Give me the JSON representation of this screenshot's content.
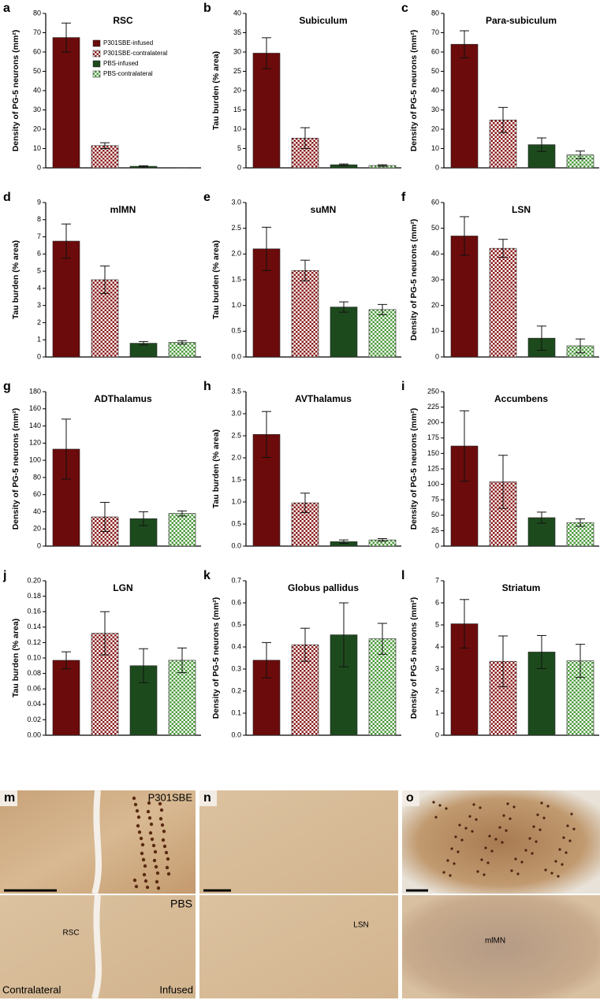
{
  "chart_data": [
    {
      "type": "bar",
      "panel": "a",
      "title": "RSC",
      "y_label": "Density of PG-5 neurons (mm²)",
      "ylim": [
        0,
        80
      ],
      "yticks": [
        0,
        10,
        20,
        30,
        40,
        50,
        60,
        70,
        80
      ],
      "legend": "top-right",
      "series": [
        {
          "name": "P301SBE-infused",
          "color": "#6b0b0b",
          "pattern": "solid",
          "values": [
            67.5
          ],
          "errors": [
            7.5
          ]
        },
        {
          "name": "P301SBE-contralateral",
          "color": "#8a1a1a",
          "pattern": "checker",
          "values": [
            11.5
          ],
          "errors": [
            1.5
          ]
        },
        {
          "name": "PBS-infused",
          "color": "#1d4a1d",
          "pattern": "solid",
          "values": [
            0.8
          ],
          "errors": [
            0.3
          ]
        },
        {
          "name": "PBS-contralateral",
          "color": "#4a9a3a",
          "pattern": "checker",
          "values": [
            0
          ],
          "errors": [
            0
          ]
        }
      ]
    },
    {
      "type": "bar",
      "panel": "b",
      "title": "Subiculum",
      "y_label": "Tau burden (% area)",
      "ylim": [
        0,
        40
      ],
      "yticks": [
        0,
        5,
        10,
        15,
        20,
        25,
        30,
        35,
        40
      ],
      "series": [
        {
          "color": "#6b0b0b",
          "pattern": "solid",
          "values": [
            29.7
          ],
          "errors": [
            4
          ]
        },
        {
          "color": "#8a1a1a",
          "pattern": "checker",
          "values": [
            7.7
          ],
          "errors": [
            2.7
          ]
        },
        {
          "color": "#1d4a1d",
          "pattern": "solid",
          "values": [
            0.8
          ],
          "errors": [
            0.2
          ]
        },
        {
          "color": "#4a9a3a",
          "pattern": "checker",
          "values": [
            0.6
          ],
          "errors": [
            0.2
          ]
        }
      ]
    },
    {
      "type": "bar",
      "panel": "c",
      "title": "Para-subiculum",
      "y_label": "Density of PG-5 neurons (mm²)",
      "ylim": [
        0,
        80
      ],
      "yticks": [
        0,
        10,
        20,
        30,
        40,
        50,
        60,
        70,
        80
      ],
      "series": [
        {
          "color": "#6b0b0b",
          "pattern": "solid",
          "values": [
            64
          ],
          "errors": [
            7
          ]
        },
        {
          "color": "#8a1a1a",
          "pattern": "checker",
          "values": [
            24.8
          ],
          "errors": [
            6.5
          ]
        },
        {
          "color": "#1d4a1d",
          "pattern": "solid",
          "values": [
            12
          ],
          "errors": [
            3.5
          ]
        },
        {
          "color": "#4a9a3a",
          "pattern": "checker",
          "values": [
            6.7
          ],
          "errors": [
            2
          ]
        }
      ]
    },
    {
      "type": "bar",
      "panel": "d",
      "title": "mlMN",
      "y_label": "Tau burden (% area)",
      "ylim": [
        0,
        9
      ],
      "yticks": [
        0,
        1,
        2,
        3,
        4,
        5,
        6,
        7,
        8,
        9
      ],
      "series": [
        {
          "color": "#6b0b0b",
          "pattern": "solid",
          "values": [
            6.75
          ],
          "errors": [
            1.0
          ]
        },
        {
          "color": "#8a1a1a",
          "pattern": "checker",
          "values": [
            4.5
          ],
          "errors": [
            0.8
          ]
        },
        {
          "color": "#1d4a1d",
          "pattern": "solid",
          "values": [
            0.8
          ],
          "errors": [
            0.1
          ]
        },
        {
          "color": "#4a9a3a",
          "pattern": "checker",
          "values": [
            0.85
          ],
          "errors": [
            0.1
          ]
        }
      ]
    },
    {
      "type": "bar",
      "panel": "e",
      "title": "suMN",
      "y_label": "Tau burden (% area)",
      "ylim": [
        0,
        3
      ],
      "yticks": [
        {
          "value": 0,
          "label": "0.0"
        },
        0.5,
        {
          "value": 1,
          "label": "1.0"
        },
        1.5,
        {
          "value": 2,
          "label": "2.0"
        },
        2.5,
        {
          "value": 3,
          "label": "3.0"
        }
      ],
      "series": [
        {
          "color": "#6b0b0b",
          "pattern": "solid",
          "values": [
            2.1
          ],
          "errors": [
            0.42
          ]
        },
        {
          "color": "#8a1a1a",
          "pattern": "checker",
          "values": [
            1.68
          ],
          "errors": [
            0.2
          ]
        },
        {
          "color": "#1d4a1d",
          "pattern": "solid",
          "values": [
            0.97
          ],
          "errors": [
            0.1
          ]
        },
        {
          "color": "#4a9a3a",
          "pattern": "checker",
          "values": [
            0.92
          ],
          "errors": [
            0.1
          ]
        }
      ]
    },
    {
      "type": "bar",
      "panel": "f",
      "title": "LSN",
      "y_label": "Density of PG-5 neurons (mm²)",
      "ylim": [
        0,
        60
      ],
      "yticks": [
        0,
        10,
        20,
        30,
        40,
        50,
        60
      ],
      "series": [
        {
          "color": "#6b0b0b",
          "pattern": "solid",
          "values": [
            47
          ],
          "errors": [
            7.5
          ]
        },
        {
          "color": "#8a1a1a",
          "pattern": "checker",
          "values": [
            42.2
          ],
          "errors": [
            3.5
          ]
        },
        {
          "color": "#1d4a1d",
          "pattern": "solid",
          "values": [
            7.3
          ],
          "errors": [
            4.7
          ]
        },
        {
          "color": "#4a9a3a",
          "pattern": "checker",
          "values": [
            4.3
          ],
          "errors": [
            2.7
          ]
        }
      ]
    },
    {
      "type": "bar",
      "panel": "g",
      "title": "ADThalamus",
      "y_label": "Density of PG-5 neurons (mm²)",
      "ylim": [
        0,
        180
      ],
      "yticks": [
        0,
        20,
        40,
        60,
        80,
        100,
        120,
        140,
        160,
        180
      ],
      "series": [
        {
          "color": "#6b0b0b",
          "pattern": "solid",
          "values": [
            113
          ],
          "errors": [
            35
          ]
        },
        {
          "color": "#8a1a1a",
          "pattern": "checker",
          "values": [
            34
          ],
          "errors": [
            17
          ]
        },
        {
          "color": "#1d4a1d",
          "pattern": "solid",
          "values": [
            32
          ],
          "errors": [
            8
          ]
        },
        {
          "color": "#4a9a3a",
          "pattern": "checker",
          "values": [
            38
          ],
          "errors": [
            3
          ]
        }
      ]
    },
    {
      "type": "bar",
      "panel": "h",
      "title": "AVThalamus",
      "y_label": "Tau burden (% area)",
      "ylim": [
        0,
        3.5
      ],
      "yticks": [
        {
          "value": 0,
          "label": "0.0"
        },
        0.5,
        {
          "value": 1,
          "label": "1.0"
        },
        1.5,
        {
          "value": 2,
          "label": "2.0"
        },
        2.5,
        {
          "value": 3,
          "label": "3.0"
        },
        3.5
      ],
      "series": [
        {
          "color": "#6b0b0b",
          "pattern": "solid",
          "values": [
            2.53
          ],
          "errors": [
            0.52
          ]
        },
        {
          "color": "#8a1a1a",
          "pattern": "checker",
          "values": [
            0.98
          ],
          "errors": [
            0.22
          ]
        },
        {
          "color": "#1d4a1d",
          "pattern": "solid",
          "values": [
            0.1
          ],
          "errors": [
            0.04
          ]
        },
        {
          "color": "#4a9a3a",
          "pattern": "checker",
          "values": [
            0.14
          ],
          "errors": [
            0.03
          ]
        }
      ]
    },
    {
      "type": "bar",
      "panel": "i",
      "title": "Accumbens",
      "y_label": "Density of PG-5 neurons (mm²)",
      "ylim": [
        0,
        250
      ],
      "yticks": [
        0,
        25,
        50,
        75,
        100,
        125,
        150,
        175,
        200,
        225,
        250
      ],
      "series": [
        {
          "color": "#6b0b0b",
          "pattern": "solid",
          "values": [
            162
          ],
          "errors": [
            57
          ]
        },
        {
          "color": "#8a1a1a",
          "pattern": "checker",
          "values": [
            104
          ],
          "errors": [
            43
          ]
        },
        {
          "color": "#1d4a1d",
          "pattern": "solid",
          "values": [
            46
          ],
          "errors": [
            9
          ]
        },
        {
          "color": "#4a9a3a",
          "pattern": "checker",
          "values": [
            38
          ],
          "errors": [
            6
          ]
        }
      ]
    },
    {
      "type": "bar",
      "panel": "j",
      "title": "LGN",
      "y_label": "Tau burden (% area)",
      "ylim": [
        0,
        0.2
      ],
      "yticks": [
        {
          "value": 0,
          "label": "0.00"
        },
        0.02,
        0.04,
        0.06,
        0.08,
        {
          "value": 0.1,
          "label": "0.10"
        },
        0.12,
        0.14,
        0.16,
        0.18,
        {
          "value": 0.2,
          "label": "0.20"
        }
      ],
      "series": [
        {
          "color": "#6b0b0b",
          "pattern": "solid",
          "values": [
            0.097
          ],
          "errors": [
            0.011
          ]
        },
        {
          "color": "#8a1a1a",
          "pattern": "checker",
          "values": [
            0.132
          ],
          "errors": [
            0.028
          ]
        },
        {
          "color": "#1d4a1d",
          "pattern": "solid",
          "values": [
            0.09
          ],
          "errors": [
            0.022
          ]
        },
        {
          "color": "#4a9a3a",
          "pattern": "checker",
          "values": [
            0.097
          ],
          "errors": [
            0.016
          ]
        }
      ]
    },
    {
      "type": "bar",
      "panel": "k",
      "title": "Globus pallidus",
      "y_label": "Density of PG-5 neurons (mm²)",
      "ylim": [
        0,
        0.7
      ],
      "yticks": [
        {
          "value": 0,
          "label": "0.0"
        },
        0.1,
        0.2,
        0.3,
        0.4,
        0.5,
        0.6,
        0.7
      ],
      "series": [
        {
          "color": "#6b0b0b",
          "pattern": "solid",
          "values": [
            0.34
          ],
          "errors": [
            0.08
          ]
        },
        {
          "color": "#8a1a1a",
          "pattern": "checker",
          "values": [
            0.41
          ],
          "errors": [
            0.075
          ]
        },
        {
          "color": "#1d4a1d",
          "pattern": "solid",
          "values": [
            0.455
          ],
          "errors": [
            0.145
          ]
        },
        {
          "color": "#4a9a3a",
          "pattern": "checker",
          "values": [
            0.437
          ],
          "errors": [
            0.07
          ]
        }
      ]
    },
    {
      "type": "bar",
      "panel": "l",
      "title": "Striatum",
      "y_label": "Density of PG-5 neurons (mm²)",
      "ylim": [
        0,
        7
      ],
      "yticks": [
        0,
        1,
        2,
        3,
        4,
        5,
        6,
        7
      ],
      "series": [
        {
          "color": "#6b0b0b",
          "pattern": "solid",
          "values": [
            5.05
          ],
          "errors": [
            1.1
          ]
        },
        {
          "color": "#8a1a1a",
          "pattern": "checker",
          "values": [
            3.35
          ],
          "errors": [
            1.15
          ]
        },
        {
          "color": "#1d4a1d",
          "pattern": "solid",
          "values": [
            3.77
          ],
          "errors": [
            0.75
          ]
        },
        {
          "color": "#4a9a3a",
          "pattern": "checker",
          "values": [
            3.37
          ],
          "errors": [
            0.75
          ]
        }
      ]
    }
  ],
  "micrographs": [
    {
      "panel": "m",
      "infused_label": "P301SBE",
      "control_label": "PBS",
      "region": "RSC",
      "left_note": "Contralateral",
      "right_note": "Infused"
    },
    {
      "panel": "n",
      "region": "LSN"
    },
    {
      "panel": "o",
      "region": "mlMN"
    }
  ]
}
